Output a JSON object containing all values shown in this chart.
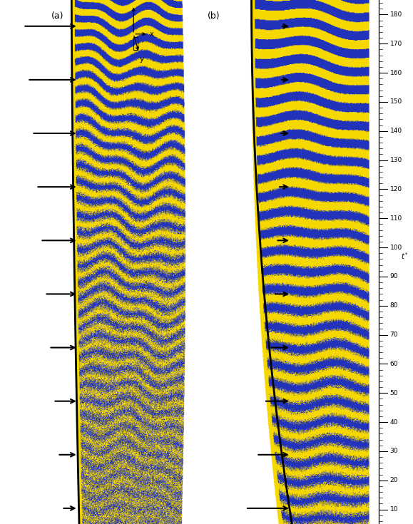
{
  "fig_width": 5.79,
  "fig_height": 7.35,
  "dpi": 100,
  "bg": "#ffffff",
  "yellow": "#F5D800",
  "blue": "#2233BB",
  "white": "#ffffff",
  "label_fs": 9,
  "tick_fs": 6.5,
  "yticks": [
    10,
    20,
    30,
    40,
    50,
    60,
    70,
    80,
    90,
    100,
    110,
    120,
    130,
    140,
    150,
    160,
    170,
    180
  ],
  "panel_a_label": "(a)",
  "panel_b_label": "(b)"
}
